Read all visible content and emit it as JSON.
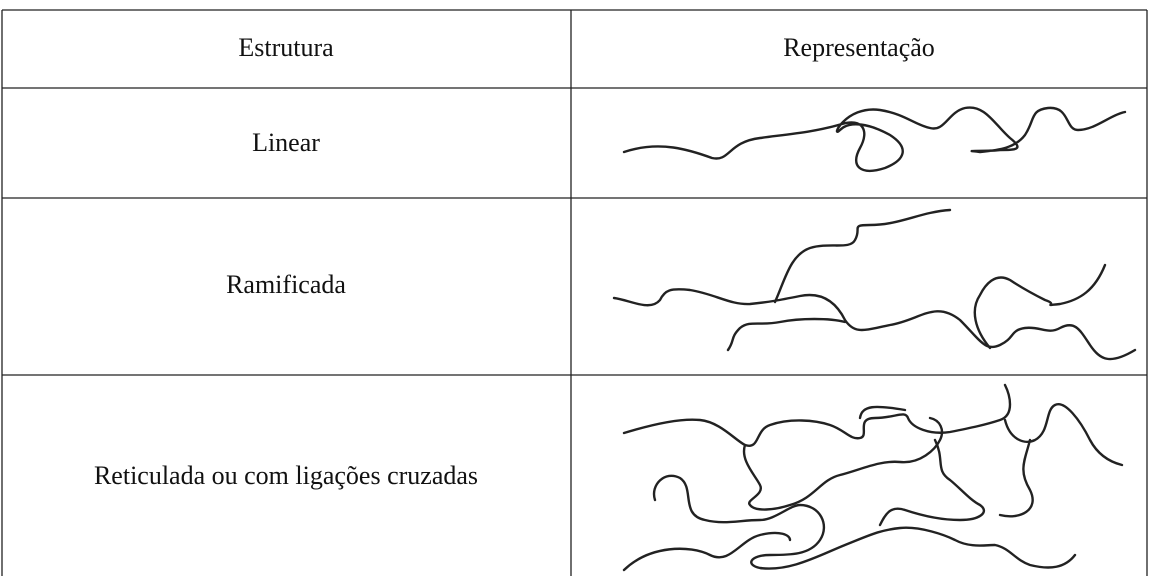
{
  "table": {
    "header": [
      "Estrutura",
      "Representação"
    ],
    "rows": [
      [
        "Linear"
      ],
      [
        "Ramificada"
      ],
      [
        "Reticulada ou com ligações cruzadas"
      ]
    ]
  }
}
